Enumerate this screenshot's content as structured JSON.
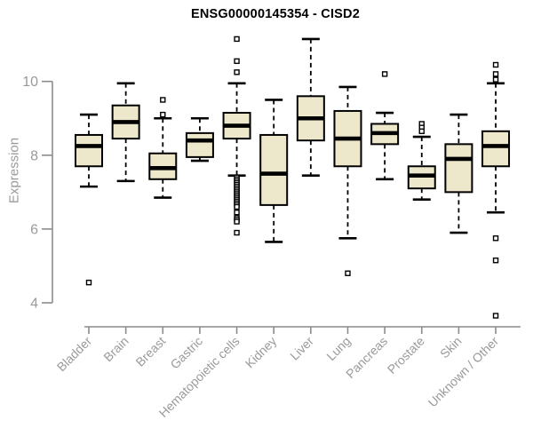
{
  "chart_data": {
    "type": "boxplot",
    "title": "ENSG00000145354 - CISD2",
    "ylabel": "Expression",
    "xlabel": "",
    "yticks": [
      4,
      6,
      8,
      10
    ],
    "y_axis_range": [
      4,
      10
    ],
    "grid": false,
    "legend_position": "none",
    "x_tick_label_rotation": 45,
    "categories": [
      "Bladder",
      "Brain",
      "Breast",
      "Gastric",
      "Hematopoietic cells",
      "Kidney",
      "Liver",
      "Lung",
      "Pancreas",
      "Prostate",
      "Skin",
      "Unknown / Other"
    ],
    "series": [
      {
        "name": "Bladder",
        "whisker_low": 7.15,
        "q1": 7.7,
        "median": 8.25,
        "q3": 8.55,
        "whisker_high": 9.1,
        "outliers": [
          4.55
        ]
      },
      {
        "name": "Brain",
        "whisker_low": 7.3,
        "q1": 8.45,
        "median": 8.9,
        "q3": 9.35,
        "whisker_high": 9.95,
        "outliers": []
      },
      {
        "name": "Breast",
        "whisker_low": 6.85,
        "q1": 7.35,
        "median": 7.65,
        "q3": 8.05,
        "whisker_high": 9.0,
        "outliers": [
          9.1,
          9.5
        ]
      },
      {
        "name": "Gastric",
        "whisker_low": 7.85,
        "q1": 7.95,
        "median": 8.4,
        "q3": 8.6,
        "whisker_high": 9.0,
        "outliers": []
      },
      {
        "name": "Hematopoietic cells",
        "whisker_low": 7.45,
        "q1": 8.45,
        "median": 8.8,
        "q3": 9.15,
        "whisker_high": 9.95,
        "outliers": [
          11.15,
          10.55,
          10.25,
          7.4,
          7.35,
          7.3,
          7.25,
          7.2,
          7.15,
          7.1,
          7.05,
          7.0,
          6.95,
          6.9,
          6.85,
          6.8,
          6.75,
          6.7,
          6.65,
          6.6,
          6.45,
          6.3,
          6.25,
          6.2,
          5.9
        ]
      },
      {
        "name": "Kidney",
        "whisker_low": 5.65,
        "q1": 6.65,
        "median": 7.5,
        "q3": 8.55,
        "whisker_high": 9.5,
        "outliers": []
      },
      {
        "name": "Liver",
        "whisker_low": 7.45,
        "q1": 8.4,
        "median": 9.0,
        "q3": 9.6,
        "whisker_high": 11.15,
        "outliers": []
      },
      {
        "name": "Lung",
        "whisker_low": 5.75,
        "q1": 7.7,
        "median": 8.45,
        "q3": 9.2,
        "whisker_high": 9.85,
        "outliers": [
          4.8
        ]
      },
      {
        "name": "Pancreas",
        "whisker_low": 7.35,
        "q1": 8.3,
        "median": 8.6,
        "q3": 8.85,
        "whisker_high": 9.15,
        "outliers": [
          10.2
        ]
      },
      {
        "name": "Prostate",
        "whisker_low": 6.8,
        "q1": 7.1,
        "median": 7.45,
        "q3": 7.7,
        "whisker_high": 8.5,
        "outliers": [
          8.85,
          8.75,
          8.65
        ]
      },
      {
        "name": "Skin",
        "whisker_low": 5.9,
        "q1": 7.0,
        "median": 7.9,
        "q3": 8.3,
        "whisker_high": 9.1,
        "outliers": []
      },
      {
        "name": "Unknown / Other",
        "whisker_low": 6.45,
        "q1": 7.7,
        "median": 8.25,
        "q3": 8.65,
        "whisker_high": 9.95,
        "outliers": [
          10.45,
          10.2,
          10.05,
          5.75,
          5.15,
          3.65
        ]
      }
    ],
    "colors": {
      "box_fill": "#EDE7CB",
      "box_border": "#000000",
      "median": "#000000",
      "whisker": "#000000",
      "outlier_stroke": "#000000",
      "outlier_fill": "#ffffff",
      "axis_line": "#8c8c8c",
      "tick_text": "#9a9a9a",
      "title_text": "#000000"
    }
  }
}
